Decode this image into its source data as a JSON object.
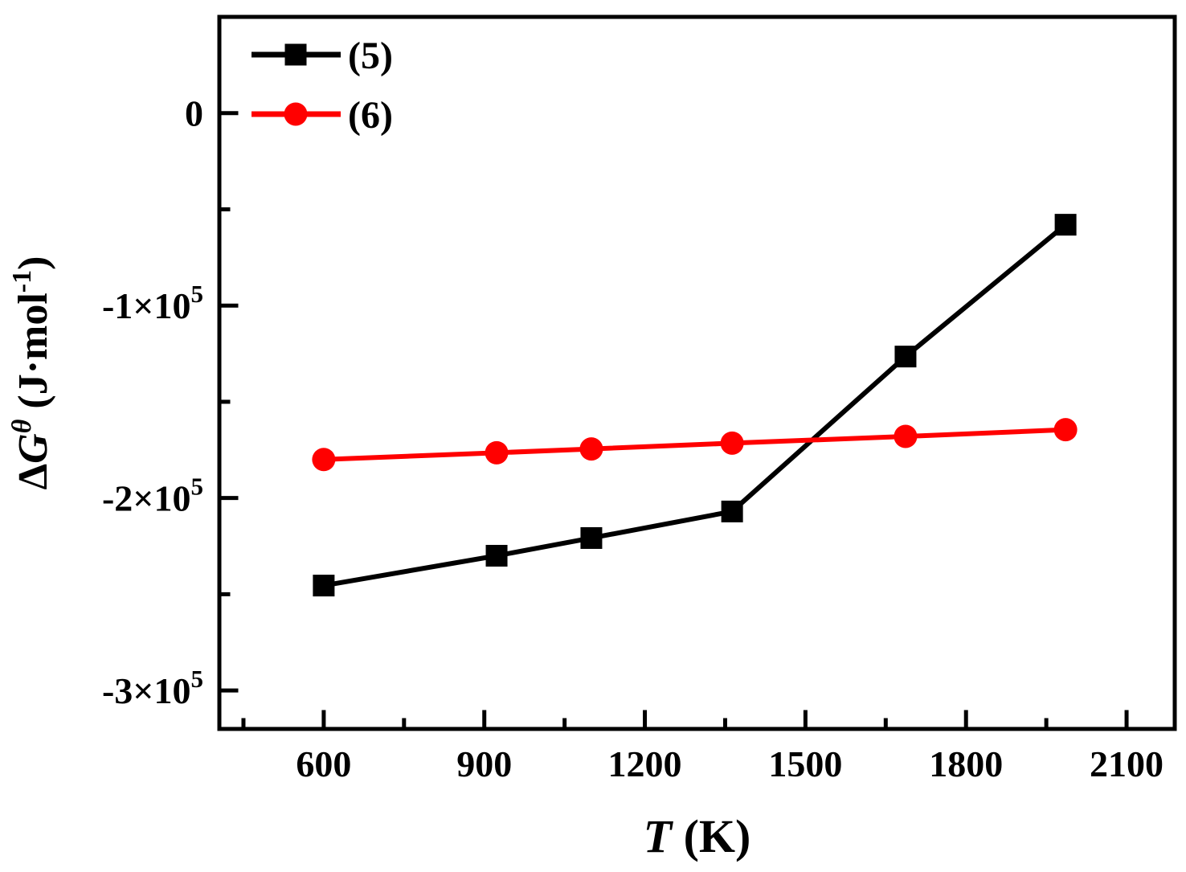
{
  "figure": {
    "background": "#ffffff",
    "frame_color": "#000000"
  },
  "chart_data": {
    "type": "line",
    "title": "",
    "xlabel": "T (K)",
    "ylabel": "ΔG^θ (J·mol-1)",
    "xlabel_parts": [
      {
        "t": "T",
        "italic": true,
        "sup": false
      },
      {
        "t": " (K)",
        "italic": false,
        "sup": false
      }
    ],
    "ylabel_parts": [
      {
        "t": "Δ",
        "italic": false,
        "sup": false
      },
      {
        "t": "G",
        "italic": true,
        "sup": false
      },
      {
        "t": "θ",
        "italic": true,
        "sup": true
      },
      {
        "t": " (J·mol",
        "italic": false,
        "sup": false
      },
      {
        "t": "-1",
        "italic": false,
        "sup": true
      },
      {
        "t": ")",
        "italic": false,
        "sup": false
      }
    ],
    "xlim": [
      405,
      2190
    ],
    "ylim": [
      -320000,
      50000
    ],
    "grid": false,
    "x_major_ticks": [
      {
        "value": 600,
        "label": "600"
      },
      {
        "value": 900,
        "label": "900"
      },
      {
        "value": 1200,
        "label": "1200"
      },
      {
        "value": 1500,
        "label": "1500"
      },
      {
        "value": 1800,
        "label": "1800"
      },
      {
        "value": 2100,
        "label": "2100"
      }
    ],
    "x_minor_ticks": [
      450,
      750,
      1050,
      1350,
      1650,
      1950
    ],
    "y_major_ticks": [
      {
        "value": 0,
        "label": "0",
        "sup": ""
      },
      {
        "value": -100000,
        "label": "-1×10",
        "sup": "5"
      },
      {
        "value": -200000,
        "label": "-2×10",
        "sup": "5"
      },
      {
        "value": -300000,
        "label": "-3×10",
        "sup": "5"
      }
    ],
    "y_minor_ticks": [
      -50000,
      -150000,
      -250000
    ],
    "legend": {
      "position": "top-left",
      "items": [
        {
          "label": "(5)",
          "color": "#000000",
          "marker": "square"
        },
        {
          "label": "(6)",
          "color": "#ff0000",
          "marker": "circle"
        }
      ]
    },
    "series": [
      {
        "name": "(5)",
        "color": "#000000",
        "marker": "square",
        "points": [
          [
            600,
            -245500
          ],
          [
            923,
            -230000
          ],
          [
            1100,
            -220800
          ],
          [
            1363,
            -207000
          ],
          [
            1687,
            -126500
          ],
          [
            1986,
            -58000
          ]
        ]
      },
      {
        "name": "(6)",
        "color": "#ff0000",
        "marker": "circle",
        "points": [
          [
            600,
            -180000
          ],
          [
            923,
            -176500
          ],
          [
            1100,
            -174500
          ],
          [
            1363,
            -171500
          ],
          [
            1687,
            -168000
          ],
          [
            1986,
            -164500
          ]
        ]
      }
    ]
  }
}
